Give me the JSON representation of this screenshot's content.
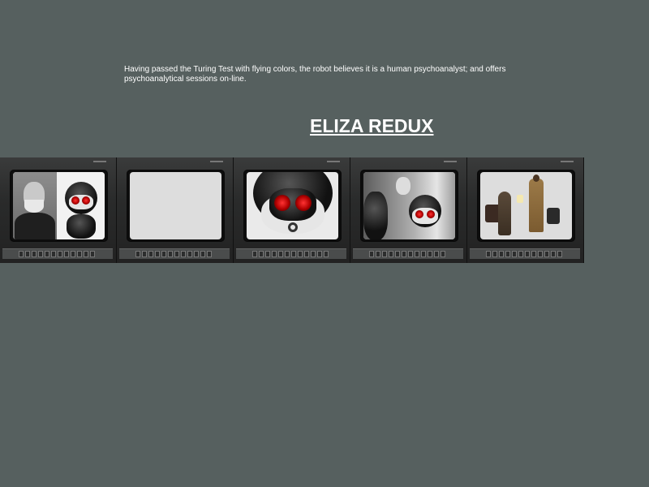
{
  "intro": {
    "text": "Having passed the Turing Test with flying colors, the robot believes it is a human psychoanalyst; and offers psychoanalytical sessions on-line."
  },
  "title": {
    "label": "ELIZA REDUX"
  },
  "monitors": [
    {
      "name": "monitor-freud-and-robot"
    },
    {
      "name": "monitor-blue-screen"
    },
    {
      "name": "monitor-robot-closeup"
    },
    {
      "name": "monitor-robot-with-freud-photo"
    },
    {
      "name": "monitor-green-screen-scene"
    }
  ]
}
